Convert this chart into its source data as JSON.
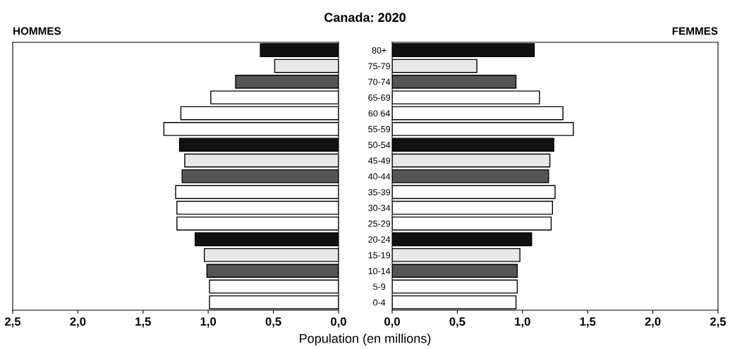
{
  "chart_data": [
    {
      "type": "bar",
      "orientation": "horizontal",
      "title": "Canada: 2020",
      "subtitle": "HOMMES",
      "xlabel": "Population (en millions)",
      "categories": [
        "80+",
        "75-79",
        "70-74",
        "65-69",
        "60 64",
        "55-59",
        "50-54",
        "45-49",
        "40-44",
        "35-39",
        "30-34",
        "25-29",
        "20-24",
        "15-19",
        "10-14",
        "5-9",
        "0-4"
      ],
      "values": [
        0.6,
        0.49,
        0.79,
        0.98,
        1.21,
        1.34,
        1.22,
        1.18,
        1.2,
        1.25,
        1.24,
        1.24,
        1.1,
        1.03,
        1.01,
        0.99,
        0.99
      ],
      "colors": [
        "#111111",
        "#e8e8e8",
        "#555555",
        "#ffffff",
        "#ffffff",
        "#ffffff",
        "#111111",
        "#e8e8e8",
        "#555555",
        "#ffffff",
        "#ffffff",
        "#ffffff",
        "#111111",
        "#e8e8e8",
        "#555555",
        "#ffffff",
        "#ffffff"
      ],
      "xlim": [
        2.5,
        0
      ],
      "xticks": [
        {
          "value": 2.5,
          "label": "2,5"
        },
        {
          "value": 2.0,
          "label": "2,0"
        },
        {
          "value": 1.5,
          "label": "1,5"
        },
        {
          "value": 1.0,
          "label": "1,0"
        },
        {
          "value": 0.5,
          "label": "0,5"
        },
        {
          "value": 0.0,
          "label": "0,0"
        }
      ],
      "grid": false
    },
    {
      "type": "bar",
      "orientation": "horizontal",
      "subtitle": "FEMMES",
      "values": [
        1.09,
        0.65,
        0.95,
        1.13,
        1.31,
        1.39,
        1.24,
        1.21,
        1.2,
        1.25,
        1.23,
        1.22,
        1.07,
        0.98,
        0.96,
        0.96,
        0.95
      ],
      "colors": [
        "#111111",
        "#e8e8e8",
        "#555555",
        "#ffffff",
        "#ffffff",
        "#ffffff",
        "#111111",
        "#e8e8e8",
        "#555555",
        "#ffffff",
        "#ffffff",
        "#ffffff",
        "#111111",
        "#e8e8e8",
        "#555555",
        "#ffffff",
        "#ffffff"
      ],
      "xlim": [
        0,
        2.5
      ],
      "xticks": [
        {
          "value": 0.0,
          "label": "0,0"
        },
        {
          "value": 0.5,
          "label": "0,5"
        },
        {
          "value": 1.0,
          "label": "1,0"
        },
        {
          "value": 1.5,
          "label": "1,5"
        },
        {
          "value": 2.0,
          "label": "2,0"
        },
        {
          "value": 2.5,
          "label": "2,5"
        }
      ],
      "tick_labels": "x",
      "grid": false
    }
  ]
}
